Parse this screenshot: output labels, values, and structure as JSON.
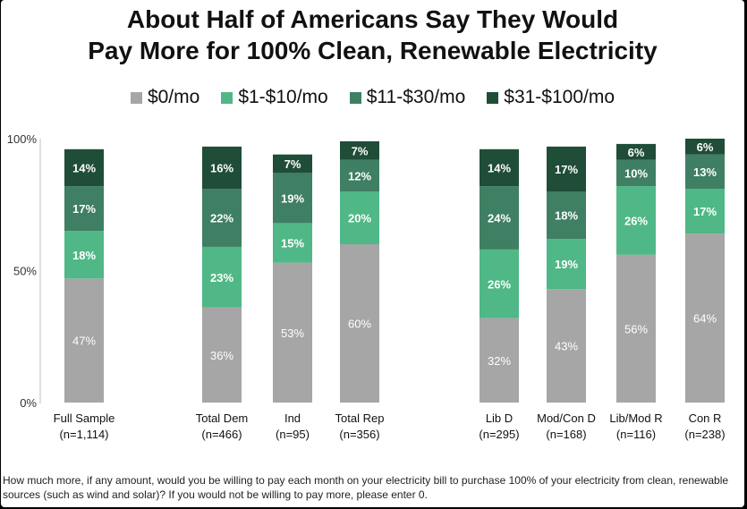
{
  "title_line1": "About Half of Americans Say They Would",
  "title_line2": "Pay More for 100% Clean, Renewable Electricity",
  "footnote": "How much more, if any amount, would you be willing to pay each month on your electricity bill to purchase 100% of your electricity from clean, renewable sources (such as wind and solar)? If you would not be willing to pay more, please enter 0.",
  "chart_data": {
    "type": "bar",
    "stacked": true,
    "categories": [
      "Full Sample",
      "Total Dem",
      "Ind",
      "Total Rep",
      "Lib D",
      "Mod/Con D",
      "Lib/Mod R",
      "Con R"
    ],
    "sample_sizes": [
      "(n=1,114)",
      "(n=466)",
      "(n=95)",
      "(n=356)",
      "(n=295)",
      "(n=168)",
      "(n=116)",
      "(n=238)"
    ],
    "series": [
      {
        "name": "$0/mo",
        "color": "#a6a6a6",
        "values": [
          47,
          36,
          53,
          60,
          32,
          43,
          56,
          64
        ]
      },
      {
        "name": "$1-$10/mo",
        "color": "#4fb886",
        "values": [
          18,
          23,
          15,
          20,
          26,
          19,
          26,
          17
        ]
      },
      {
        "name": "$11-$30/mo",
        "color": "#3f7f63",
        "values": [
          17,
          22,
          19,
          12,
          24,
          18,
          10,
          13
        ]
      },
      {
        "name": "$31-$100/mo",
        "color": "#1f4d38",
        "values": [
          14,
          16,
          7,
          7,
          14,
          17,
          6,
          6
        ]
      }
    ],
    "y_ticks": [
      "0%",
      "50%",
      "100%"
    ],
    "ylim": [
      0,
      100
    ],
    "legend_position": "top",
    "grid": false
  }
}
